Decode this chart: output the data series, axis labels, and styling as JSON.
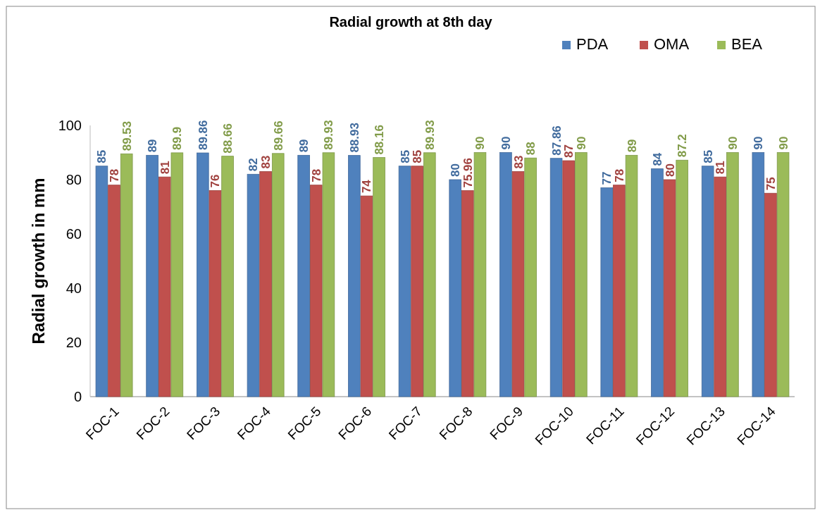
{
  "chart_data": {
    "type": "bar",
    "title": "Radial growth at 8th day",
    "ylabel": "Radial growth in mm",
    "categories": [
      "FOC-1",
      "FOC-2",
      "FOC-3",
      "FOC-4",
      "FOC-5",
      "FOC-6",
      "FOC-7",
      "FOC-8",
      "FOC-9",
      "FOC-10",
      "FOC-11",
      "FOC-12",
      "FOC-13",
      "FOC-14"
    ],
    "series": [
      {
        "name": "PDA",
        "color": "#4f81bd",
        "values": [
          85,
          89,
          89.86,
          82,
          89,
          88.93,
          85,
          80,
          90,
          87.86,
          77,
          84,
          85,
          90
        ]
      },
      {
        "name": "OMA",
        "color": "#c0504d",
        "values": [
          78,
          81,
          76,
          83,
          78,
          74,
          85,
          75.96,
          83,
          87,
          78,
          80,
          81,
          75
        ]
      },
      {
        "name": "BEA",
        "color": "#9bbb59",
        "values": [
          89.53,
          89.9,
          88.66,
          89.66,
          89.93,
          88.16,
          89.93,
          90,
          88,
          90,
          89,
          87.2,
          90,
          90
        ]
      }
    ],
    "ylim": [
      0,
      100
    ],
    "yticks": [
      0,
      20,
      40,
      60,
      80,
      100
    ],
    "grid": false,
    "legend": "top right",
    "data_labels": true
  }
}
